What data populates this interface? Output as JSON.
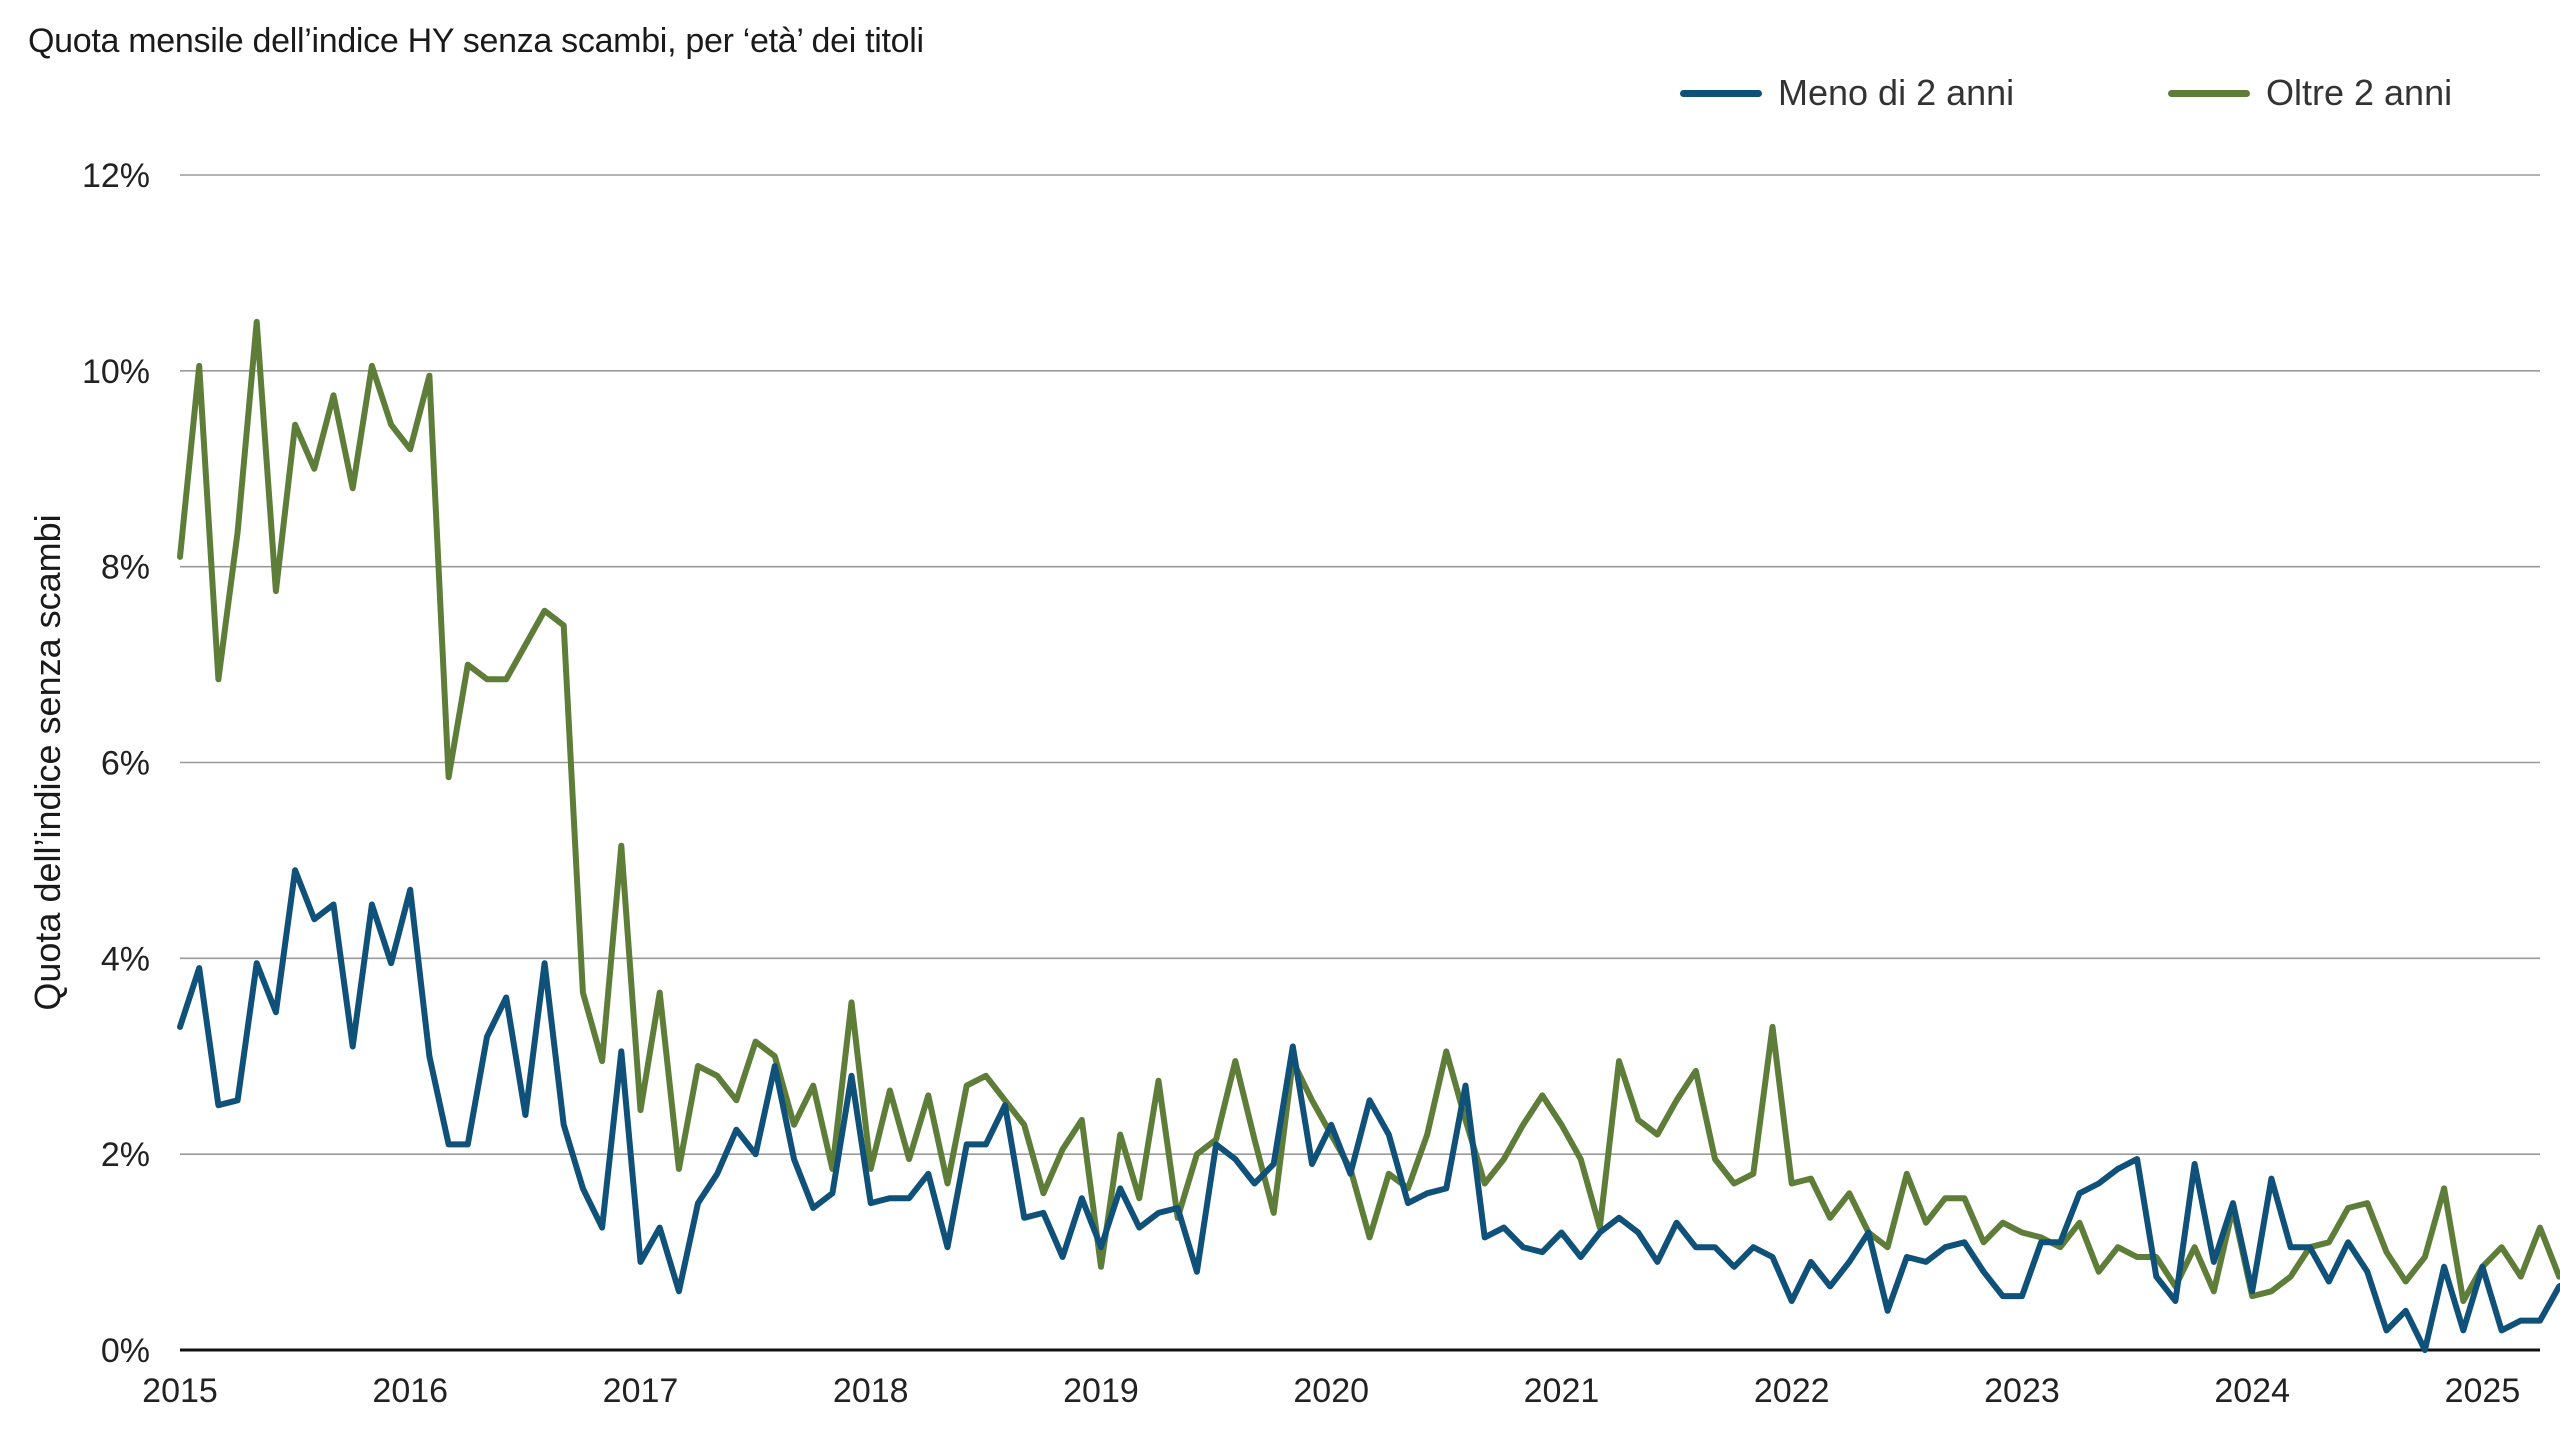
{
  "chart_data": {
    "type": "line",
    "title": "Quota mensile dell’indice HY senza scambi, per ‘età’ dei titoli",
    "ylabel": "Quota dell’indice senza scambi",
    "xlabel": "",
    "x_start": "2015-01",
    "x_range": [
      2015.0,
      2025.25
    ],
    "ylim": [
      0,
      12
    ],
    "y_ticks": [
      0,
      2,
      4,
      6,
      8,
      10,
      12
    ],
    "y_tick_labels": [
      "0%",
      "2%",
      "4%",
      "6%",
      "8%",
      "10%",
      "12%"
    ],
    "x_ticks": [
      2015,
      2016,
      2017,
      2018,
      2019,
      2020,
      2021,
      2022,
      2023,
      2024,
      2025
    ],
    "x_tick_labels": [
      "2015",
      "2016",
      "2017",
      "2018",
      "2019",
      "2020",
      "2021",
      "2022",
      "2023",
      "2024",
      "2025"
    ],
    "grid": true,
    "legend_position": "top-right",
    "series": [
      {
        "name": "Meno di 2 anni",
        "color": "#0f5178",
        "values": [
          3.3,
          3.9,
          2.5,
          2.55,
          3.95,
          3.45,
          4.9,
          4.4,
          4.55,
          3.1,
          4.55,
          3.95,
          4.7,
          3.0,
          2.1,
          2.1,
          3.2,
          3.6,
          2.4,
          3.95,
          2.3,
          1.65,
          1.25,
          3.05,
          0.9,
          1.25,
          0.6,
          1.5,
          1.8,
          2.25,
          2.0,
          2.9,
          1.95,
          1.45,
          1.6,
          2.8,
          1.5,
          1.55,
          1.55,
          1.8,
          1.05,
          2.1,
          2.1,
          2.5,
          1.35,
          1.4,
          0.95,
          1.55,
          1.05,
          1.65,
          1.25,
          1.4,
          1.45,
          0.8,
          2.1,
          1.95,
          1.7,
          1.9,
          3.1,
          1.9,
          2.3,
          1.8,
          2.55,
          2.2,
          1.5,
          1.6,
          1.65,
          2.7,
          1.15,
          1.25,
          1.05,
          1.0,
          1.2,
          0.95,
          1.2,
          1.35,
          1.2,
          0.9,
          1.3,
          1.05,
          1.05,
          0.85,
          1.05,
          0.95,
          0.5,
          0.9,
          0.65,
          0.9,
          1.2,
          0.4,
          0.95,
          0.9,
          1.05,
          1.1,
          0.8,
          0.55,
          0.55,
          1.1,
          1.1,
          1.6,
          1.7,
          1.85,
          1.95,
          0.75,
          0.5,
          1.9,
          0.9,
          1.5,
          0.6,
          1.75,
          1.05,
          1.05,
          0.7,
          1.1,
          0.8,
          0.2,
          0.4,
          0.0,
          0.85,
          0.2,
          0.85,
          0.2,
          0.3,
          0.3,
          0.65,
          0.75,
          0.7,
          0.55,
          0.15,
          0.85,
          0.25,
          0.4,
          0.1,
          1.05
        ]
      },
      {
        "name": "Oltre 2 anni",
        "color": "#5e7d39",
        "values": [
          8.1,
          10.05,
          6.85,
          8.35,
          10.5,
          7.75,
          9.45,
          9.0,
          9.75,
          8.8,
          10.05,
          9.45,
          9.2,
          9.95,
          5.85,
          7.0,
          6.85,
          6.85,
          7.2,
          7.55,
          7.4,
          3.65,
          2.95,
          5.15,
          2.45,
          3.65,
          1.85,
          2.9,
          2.8,
          2.55,
          3.15,
          3.0,
          2.3,
          2.7,
          1.85,
          3.55,
          1.85,
          2.65,
          1.95,
          2.6,
          1.7,
          2.7,
          2.8,
          2.55,
          2.3,
          1.6,
          2.05,
          2.35,
          0.85,
          2.2,
          1.55,
          2.75,
          1.35,
          2.0,
          2.15,
          2.95,
          2.15,
          1.4,
          2.95,
          2.55,
          2.2,
          1.85,
          1.15,
          1.8,
          1.65,
          2.2,
          3.05,
          2.35,
          1.7,
          1.95,
          2.3,
          2.6,
          2.3,
          1.95,
          1.25,
          2.95,
          2.35,
          2.2,
          2.55,
          2.85,
          1.95,
          1.7,
          1.8,
          3.3,
          1.7,
          1.75,
          1.35,
          1.6,
          1.2,
          1.05,
          1.8,
          1.3,
          1.55,
          1.55,
          1.1,
          1.3,
          1.2,
          1.15,
          1.05,
          1.3,
          0.8,
          1.05,
          0.95,
          0.95,
          0.65,
          1.05,
          0.6,
          1.45,
          0.55,
          0.6,
          0.75,
          1.05,
          1.1,
          1.45,
          1.5,
          1.0,
          0.7,
          0.95,
          1.65,
          0.5,
          0.85,
          1.05,
          0.75,
          1.25,
          0.75,
          0.85,
          0.95,
          1.1,
          1.0,
          1.9,
          1.7,
          1.0,
          1.0,
          0.85
        ]
      }
    ]
  }
}
